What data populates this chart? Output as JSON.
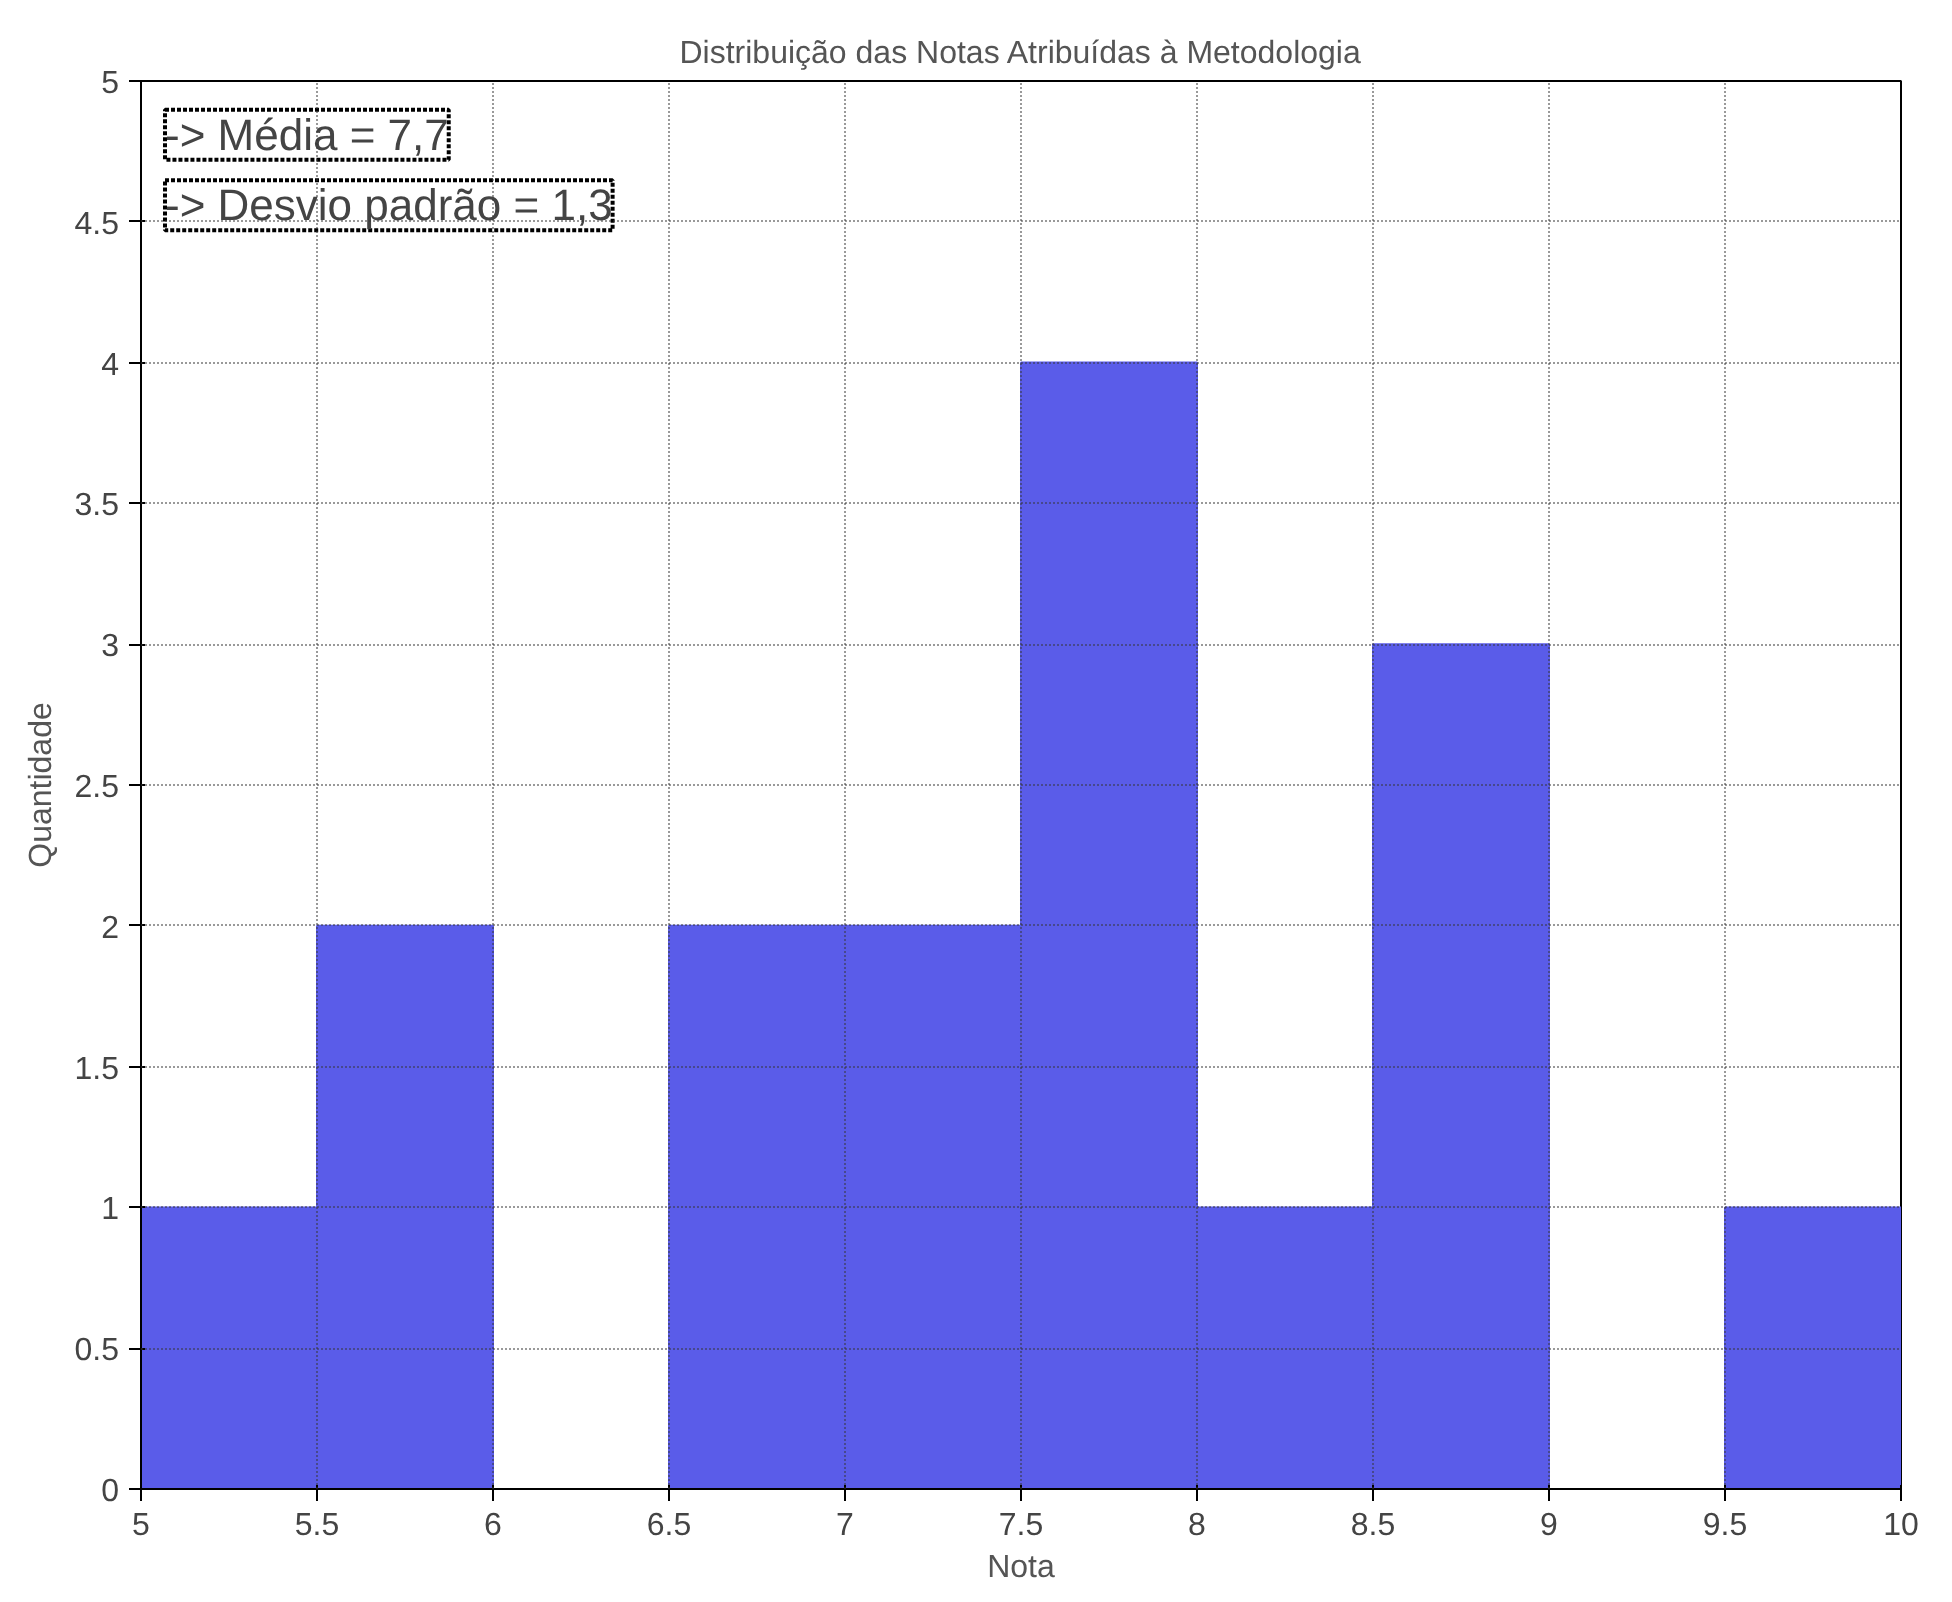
{
  "chart_data": {
    "type": "histogram",
    "title": "Distribuição das Notas Atribuídas à Metodologia",
    "xlabel": "Nota",
    "ylabel": "Quantidade",
    "bins": [
      5,
      5.5,
      6,
      6.5,
      7,
      7.5,
      8,
      8.5,
      9,
      9.5,
      10
    ],
    "values": [
      1,
      2,
      0,
      2,
      2,
      4,
      1,
      3,
      0,
      1
    ],
    "color": "#5a5ce9",
    "xlim": [
      5,
      10
    ],
    "ylim": [
      0,
      5
    ],
    "xticks": [
      5,
      5.5,
      6,
      6.5,
      7,
      7.5,
      8,
      8.5,
      9,
      9.5,
      10
    ],
    "yticks": [
      0,
      0.5,
      1,
      1.5,
      2,
      2.5,
      3,
      3.5,
      4,
      4.5,
      5
    ],
    "grid": true,
    "annotations": [
      "-> Média = 7,7",
      "-> Desvio padrão = 1,3"
    ]
  }
}
